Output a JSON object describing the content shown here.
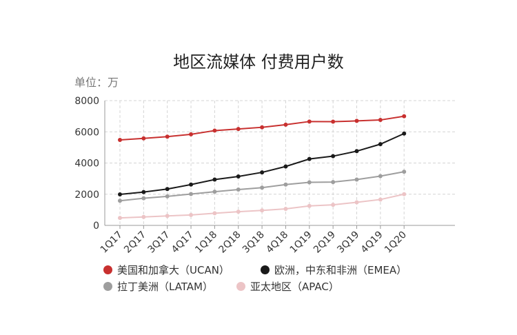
{
  "chart_data": {
    "type": "line",
    "title": "地区流媒体 付费用户数",
    "unit_label": "单位：万",
    "categories": [
      "1Q17",
      "2Q17",
      "3Q17",
      "4Q17",
      "1Q18",
      "2Q18",
      "3Q18",
      "4Q18",
      "1Q19",
      "2Q19",
      "3Q19",
      "4Q19",
      "1Q20"
    ],
    "ylim": [
      0,
      8000
    ],
    "yticks": [
      0,
      2000,
      4000,
      6000,
      8000
    ],
    "grid": true,
    "legend_position": "bottom",
    "series": [
      {
        "name": "美国和加拿大（UCAN）",
        "color": "#c8302f",
        "values": [
          5480,
          5580,
          5690,
          5840,
          6080,
          6180,
          6290,
          6460,
          6660,
          6650,
          6700,
          6760,
          7000
        ]
      },
      {
        "name": "欧洲，中东和非洲（EMEA）",
        "color": "#1a1a1a",
        "values": [
          1990,
          2140,
          2330,
          2620,
          2940,
          3140,
          3400,
          3780,
          4260,
          4440,
          4760,
          5210,
          5890
        ]
      },
      {
        "name": "拉丁美洲（LATAM）",
        "color": "#9e9e9e",
        "values": [
          1580,
          1740,
          1860,
          2010,
          2160,
          2300,
          2420,
          2620,
          2760,
          2780,
          2940,
          3160,
          3440
        ]
      },
      {
        "name": "亚太地区（APAC）",
        "color": "#ecc4c6",
        "values": [
          480,
          540,
          610,
          670,
          780,
          880,
          960,
          1060,
          1250,
          1320,
          1480,
          1660,
          2000
        ]
      }
    ]
  }
}
